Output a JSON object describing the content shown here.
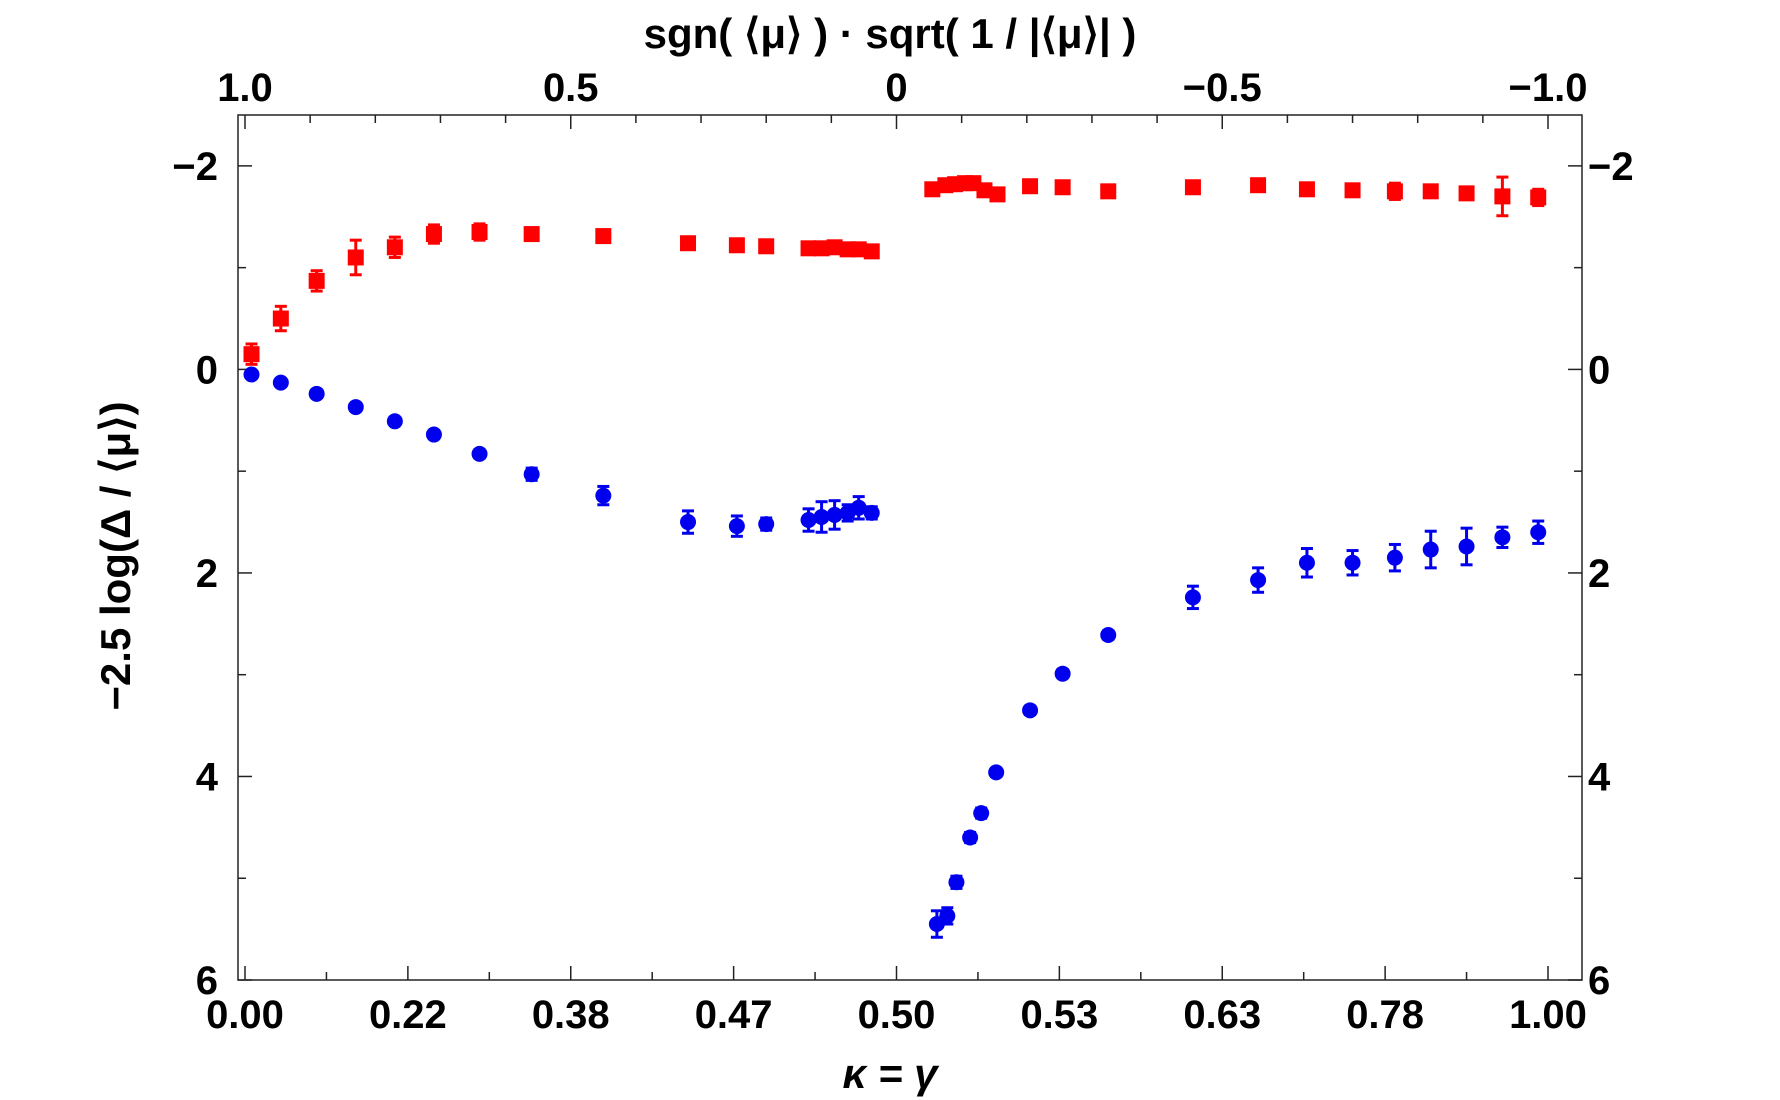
{
  "chart_data": {
    "type": "scatter",
    "xlabel": "κ = γ",
    "ylabel": "−2.5 log(Δ / ⟨μ⟩)",
    "top_xlabel": "sgn( ⟨μ⟩ ) · sqrt( 1 / |⟨μ⟩| )",
    "xlim": [
      -1.0,
      1.0
    ],
    "ylim": [
      6,
      -2.5
    ],
    "bottom_ticks": [
      {
        "pos": -1.0,
        "label": "0.00"
      },
      {
        "pos": -0.75,
        "label": "0.22"
      },
      {
        "pos": -0.5,
        "label": "0.38"
      },
      {
        "pos": -0.25,
        "label": "0.47"
      },
      {
        "pos": 0.0,
        "label": "0.50"
      },
      {
        "pos": 0.25,
        "label": "0.53"
      },
      {
        "pos": 0.5,
        "label": "0.63"
      },
      {
        "pos": 0.75,
        "label": "0.78"
      },
      {
        "pos": 1.0,
        "label": "1.00"
      }
    ],
    "top_ticks": [
      {
        "pos": -1.0,
        "label": "1.0"
      },
      {
        "pos": -0.5,
        "label": "0.5"
      },
      {
        "pos": 0.0,
        "label": "0"
      },
      {
        "pos": 0.5,
        "label": "−0.5"
      },
      {
        "pos": 1.0,
        "label": "−1.0"
      }
    ],
    "y_ticks": [
      {
        "pos": -2,
        "label": "−2"
      },
      {
        "pos": 0,
        "label": "0"
      },
      {
        "pos": 2,
        "label": "2"
      },
      {
        "pos": 4,
        "label": "4"
      },
      {
        "pos": 6,
        "label": "6"
      }
    ],
    "series": [
      {
        "name": "red squares",
        "marker": "square",
        "color": "#ff0000",
        "points": [
          {
            "x": -0.99,
            "y": -0.15,
            "err": 0.1
          },
          {
            "x": -0.945,
            "y": -0.5,
            "err": 0.12
          },
          {
            "x": -0.89,
            "y": -0.87,
            "err": 0.1
          },
          {
            "x": -0.83,
            "y": -1.1,
            "err": 0.17
          },
          {
            "x": -0.77,
            "y": -1.2,
            "err": 0.1
          },
          {
            "x": -0.71,
            "y": -1.33,
            "err": 0.09
          },
          {
            "x": -0.64,
            "y": -1.35,
            "err": 0.08
          },
          {
            "x": -0.56,
            "y": -1.33,
            "err": 0.05
          },
          {
            "x": -0.45,
            "y": -1.31,
            "err": 0.04
          },
          {
            "x": -0.32,
            "y": -1.24,
            "err": 0.05
          },
          {
            "x": -0.245,
            "y": -1.22,
            "err": 0.05
          },
          {
            "x": -0.2,
            "y": -1.21,
            "err": 0.05
          },
          {
            "x": -0.135,
            "y": -1.19,
            "err": 0.05
          },
          {
            "x": -0.115,
            "y": -1.19,
            "err": 0.05
          },
          {
            "x": -0.095,
            "y": -1.2,
            "err": 0.05
          },
          {
            "x": -0.075,
            "y": -1.18,
            "err": 0.05
          },
          {
            "x": -0.058,
            "y": -1.18,
            "err": 0.05
          },
          {
            "x": -0.038,
            "y": -1.16,
            "err": 0.05
          },
          {
            "x": 0.055,
            "y": -1.77,
            "err": 0.04
          },
          {
            "x": 0.075,
            "y": -1.81,
            "err": 0.04
          },
          {
            "x": 0.09,
            "y": -1.82,
            "err": 0.04
          },
          {
            "x": 0.105,
            "y": -1.83,
            "err": 0.04
          },
          {
            "x": 0.118,
            "y": -1.83,
            "err": 0.04
          },
          {
            "x": 0.135,
            "y": -1.76,
            "err": 0.04
          },
          {
            "x": 0.155,
            "y": -1.72,
            "err": 0.04
          },
          {
            "x": 0.205,
            "y": -1.8,
            "err": 0.04
          },
          {
            "x": 0.255,
            "y": -1.79,
            "err": 0.05
          },
          {
            "x": 0.325,
            "y": -1.75,
            "err": 0.05
          },
          {
            "x": 0.455,
            "y": -1.79,
            "err": 0.05
          },
          {
            "x": 0.555,
            "y": -1.81,
            "err": 0.05
          },
          {
            "x": 0.63,
            "y": -1.77,
            "err": 0.06
          },
          {
            "x": 0.7,
            "y": -1.76,
            "err": 0.05
          },
          {
            "x": 0.765,
            "y": -1.75,
            "err": 0.08
          },
          {
            "x": 0.82,
            "y": -1.75,
            "err": 0.06
          },
          {
            "x": 0.875,
            "y": -1.73,
            "err": 0.06
          },
          {
            "x": 0.93,
            "y": -1.7,
            "err": 0.19
          },
          {
            "x": 0.985,
            "y": -1.69,
            "err": 0.08
          }
        ]
      },
      {
        "name": "blue circles",
        "marker": "circle",
        "color": "#0000ee",
        "points": [
          {
            "x": -0.99,
            "y": 0.05,
            "err": 0.03
          },
          {
            "x": -0.945,
            "y": 0.13,
            "err": 0.03
          },
          {
            "x": -0.89,
            "y": 0.24,
            "err": 0.03
          },
          {
            "x": -0.83,
            "y": 0.37,
            "err": 0.03
          },
          {
            "x": -0.77,
            "y": 0.51,
            "err": 0.03
          },
          {
            "x": -0.71,
            "y": 0.64,
            "err": 0.03
          },
          {
            "x": -0.64,
            "y": 0.83,
            "err": 0.04
          },
          {
            "x": -0.56,
            "y": 1.03,
            "err": 0.06
          },
          {
            "x": -0.45,
            "y": 1.24,
            "err": 0.09
          },
          {
            "x": -0.32,
            "y": 1.5,
            "err": 0.11
          },
          {
            "x": -0.245,
            "y": 1.54,
            "err": 0.1
          },
          {
            "x": -0.2,
            "y": 1.52,
            "err": 0.06
          },
          {
            "x": -0.135,
            "y": 1.48,
            "err": 0.11
          },
          {
            "x": -0.115,
            "y": 1.45,
            "err": 0.15
          },
          {
            "x": -0.095,
            "y": 1.43,
            "err": 0.14
          },
          {
            "x": -0.075,
            "y": 1.41,
            "err": 0.08
          },
          {
            "x": -0.058,
            "y": 1.36,
            "err": 0.11
          },
          {
            "x": -0.038,
            "y": 1.41,
            "err": 0.06
          },
          {
            "x": 0.062,
            "y": 5.45,
            "err": 0.13
          },
          {
            "x": 0.078,
            "y": 5.37,
            "err": 0.08
          },
          {
            "x": 0.092,
            "y": 5.04,
            "err": 0.06
          },
          {
            "x": 0.113,
            "y": 4.6,
            "err": 0.05
          },
          {
            "x": 0.13,
            "y": 4.36,
            "err": 0.05
          },
          {
            "x": 0.153,
            "y": 3.96,
            "err": 0.04
          },
          {
            "x": 0.205,
            "y": 3.35,
            "err": 0.04
          },
          {
            "x": 0.255,
            "y": 2.99,
            "err": 0.04
          },
          {
            "x": 0.325,
            "y": 2.61,
            "err": 0.04
          },
          {
            "x": 0.455,
            "y": 2.24,
            "err": 0.11
          },
          {
            "x": 0.555,
            "y": 2.07,
            "err": 0.12
          },
          {
            "x": 0.63,
            "y": 1.9,
            "err": 0.14
          },
          {
            "x": 0.7,
            "y": 1.9,
            "err": 0.12
          },
          {
            "x": 0.765,
            "y": 1.85,
            "err": 0.13
          },
          {
            "x": 0.82,
            "y": 1.77,
            "err": 0.18
          },
          {
            "x": 0.875,
            "y": 1.74,
            "err": 0.18
          },
          {
            "x": 0.93,
            "y": 1.65,
            "err": 0.1
          },
          {
            "x": 0.985,
            "y": 1.6,
            "err": 0.11
          }
        ]
      }
    ]
  }
}
